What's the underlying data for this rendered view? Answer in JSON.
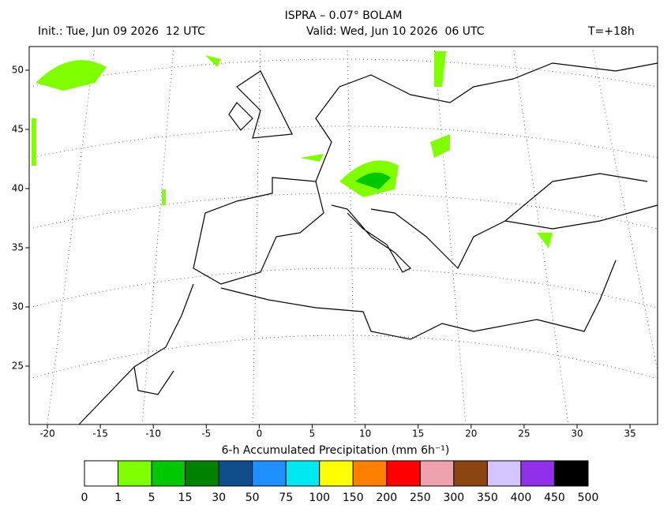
{
  "header": {
    "title": "ISPRA – 0.07° BOLAM",
    "init": "Init.: Tue, Jun 09 2026  12 UTC",
    "valid": "Valid: Wed, Jun 10 2026  06 UTC",
    "lead": "T=+18h"
  },
  "map": {
    "x_labels": [
      "-20",
      "-15",
      "-10",
      "-5",
      "0",
      "5",
      "10",
      "15",
      "20",
      "25",
      "30",
      "35"
    ],
    "y_labels": [
      "50",
      "45",
      "40",
      "35",
      "30",
      "25"
    ]
  },
  "colorbar": {
    "label": "6-h Accumulated Precipitation (mm 6h⁻¹)",
    "labels": [
      "0",
      "1",
      "5",
      "15",
      "30",
      "50",
      "75",
      "100",
      "150",
      "200",
      "250",
      "300",
      "350",
      "400",
      "450",
      "500"
    ],
    "colors": [
      "#ffffff",
      "#80ff00",
      "#00c800",
      "#008200",
      "#104e8b",
      "#1e90ff",
      "#00e8f0",
      "#ffff00",
      "#ff8000",
      "#ff0000",
      "#eea2ad",
      "#8b4513",
      "#d4c4ff",
      "#9030e8",
      "#000000"
    ]
  }
}
